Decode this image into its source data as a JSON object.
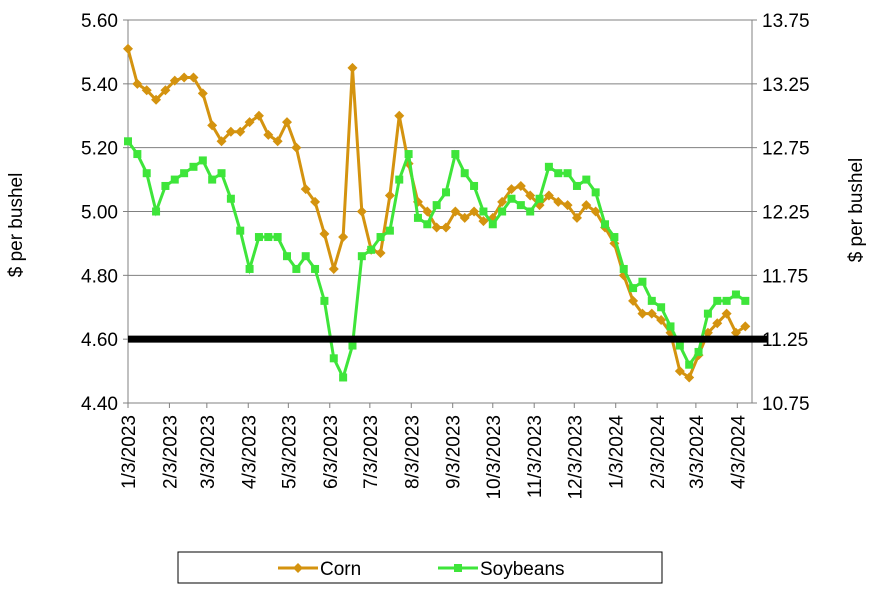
{
  "chart_data": {
    "type": "line",
    "y_label": "$ per bushel",
    "y2_label": "$ per bushel",
    "x": [
      "2023-01-03",
      "2023-01-10",
      "2023-01-17",
      "2023-01-24",
      "2023-01-31",
      "2023-02-07",
      "2023-02-14",
      "2023-02-21",
      "2023-02-28",
      "2023-03-07",
      "2023-03-14",
      "2023-03-21",
      "2023-03-28",
      "2023-04-04",
      "2023-04-11",
      "2023-04-18",
      "2023-04-25",
      "2023-05-02",
      "2023-05-09",
      "2023-05-16",
      "2023-05-23",
      "2023-05-30",
      "2023-06-06",
      "2023-06-13",
      "2023-06-20",
      "2023-06-27",
      "2023-07-04",
      "2023-07-11",
      "2023-07-18",
      "2023-07-25",
      "2023-08-01",
      "2023-08-08",
      "2023-08-15",
      "2023-08-22",
      "2023-08-29",
      "2023-09-05",
      "2023-09-12",
      "2023-09-19",
      "2023-09-26",
      "2023-10-03",
      "2023-10-10",
      "2023-10-17",
      "2023-10-24",
      "2023-10-31",
      "2023-11-07",
      "2023-11-14",
      "2023-11-21",
      "2023-11-28",
      "2023-12-05",
      "2023-12-12",
      "2023-12-19",
      "2023-12-26",
      "2024-01-02",
      "2024-01-09",
      "2024-01-16",
      "2024-01-23",
      "2024-01-30",
      "2024-02-06",
      "2024-02-13",
      "2024-02-20",
      "2024-02-27",
      "2024-03-05",
      "2024-03-12",
      "2024-03-19",
      "2024-03-26",
      "2024-04-02",
      "2024-04-09"
    ],
    "series": [
      {
        "name": "Corn",
        "color": "#d4930f",
        "marker": "diamond",
        "values": [
          5.51,
          5.4,
          5.38,
          5.35,
          5.38,
          5.41,
          5.42,
          5.42,
          5.37,
          5.27,
          5.22,
          5.25,
          5.25,
          5.28,
          5.3,
          5.24,
          5.22,
          5.28,
          5.2,
          5.07,
          5.03,
          4.93,
          4.82,
          4.92,
          5.45,
          5.0,
          4.88,
          4.87,
          5.05,
          5.3,
          5.15,
          5.03,
          5.0,
          4.95,
          4.95,
          5.0,
          4.98,
          5.0,
          4.97,
          4.98,
          5.03,
          5.07,
          5.08,
          5.05,
          5.02,
          5.05,
          5.03,
          5.02,
          4.98,
          5.02,
          5.0,
          4.95,
          4.9,
          4.8,
          4.72,
          4.68,
          4.68,
          4.66,
          4.62,
          4.5,
          4.48,
          4.55,
          4.62,
          4.65,
          4.68,
          4.62,
          4.64
        ]
      },
      {
        "name": "Soybeans",
        "color": "#3ee53a",
        "marker": "square",
        "axis": "y2",
        "values": [
          12.8,
          12.7,
          12.55,
          12.25,
          12.45,
          12.5,
          12.55,
          12.6,
          12.65,
          12.5,
          12.55,
          12.35,
          12.1,
          11.8,
          12.05,
          12.05,
          12.05,
          11.9,
          11.8,
          11.9,
          11.8,
          11.55,
          11.1,
          10.95,
          11.2,
          11.9,
          11.95,
          12.05,
          12.1,
          12.5,
          12.7,
          12.2,
          12.15,
          12.3,
          12.4,
          12.7,
          12.55,
          12.45,
          12.25,
          12.15,
          12.25,
          12.35,
          12.3,
          12.25,
          12.35,
          12.6,
          12.55,
          12.55,
          12.45,
          12.5,
          12.4,
          12.15,
          12.05,
          11.8,
          11.65,
          11.7,
          11.55,
          11.5,
          11.35,
          11.2,
          11.05,
          11.15,
          11.45,
          11.55,
          11.55,
          11.6,
          11.55
        ]
      }
    ],
    "xlim": [
      "2023-01-03",
      "2024-04-14"
    ],
    "xticks": [
      {
        "value": "2023-01-03",
        "label": "1/3/2023"
      },
      {
        "value": "2023-02-03",
        "label": "2/3/2023"
      },
      {
        "value": "2023-03-03",
        "label": "3/3/2023"
      },
      {
        "value": "2023-04-03",
        "label": "4/3/2023"
      },
      {
        "value": "2023-05-03",
        "label": "5/3/2023"
      },
      {
        "value": "2023-06-03",
        "label": "6/3/2023"
      },
      {
        "value": "2023-07-03",
        "label": "7/3/2023"
      },
      {
        "value": "2023-08-03",
        "label": "8/3/2023"
      },
      {
        "value": "2023-09-03",
        "label": "9/3/2023"
      },
      {
        "value": "2023-10-03",
        "label": "10/3/2023"
      },
      {
        "value": "2023-11-03",
        "label": "11/3/2023"
      },
      {
        "value": "2023-12-03",
        "label": "12/3/2023"
      },
      {
        "value": "2024-01-03",
        "label": "1/3/2024"
      },
      {
        "value": "2024-02-03",
        "label": "2/3/2024"
      },
      {
        "value": "2024-03-03",
        "label": "3/3/2024"
      },
      {
        "value": "2024-04-03",
        "label": "4/3/2024"
      }
    ],
    "ylim": [
      4.4,
      5.6
    ],
    "yticks": [
      {
        "value": 4.4,
        "label": "4.40"
      },
      {
        "value": 4.6,
        "label": "4.60"
      },
      {
        "value": 4.8,
        "label": "4.80"
      },
      {
        "value": 5.0,
        "label": "5.00"
      },
      {
        "value": 5.2,
        "label": "5.20"
      },
      {
        "value": 5.4,
        "label": "5.40"
      },
      {
        "value": 5.6,
        "label": "5.60"
      }
    ],
    "y2lim": [
      10.75,
      13.75
    ],
    "y2ticks": [
      10.75,
      11.25,
      11.75,
      12.25,
      12.75,
      13.25,
      13.75
    ],
    "hline": 4.6,
    "hline_color": "#000000",
    "grid": true,
    "legend": "bottom"
  }
}
